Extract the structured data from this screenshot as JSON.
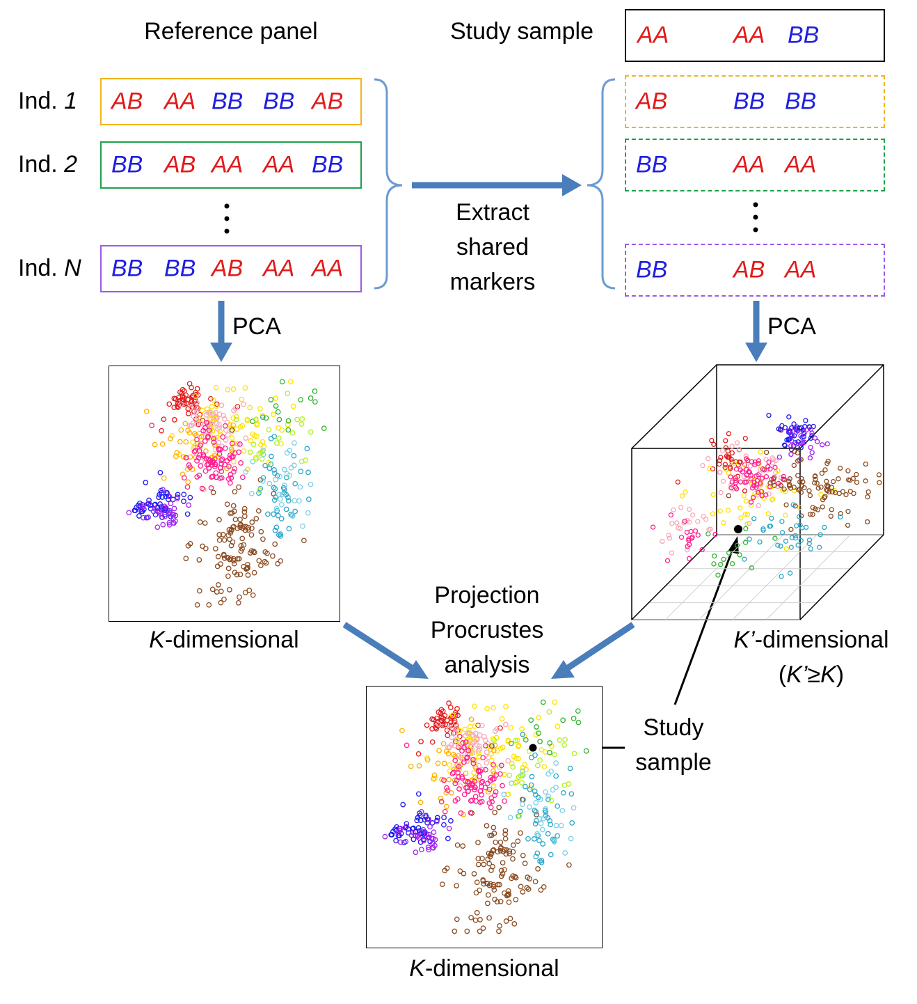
{
  "titles": {
    "reference": "Reference panel",
    "study": "Study sample"
  },
  "study_row": [
    "AA",
    "AA",
    "BB"
  ],
  "ref_rows": [
    {
      "label_prefix": "Ind. ",
      "label_index": "1",
      "color": "#f2b51c",
      "genotypes": [
        "AB",
        "AA",
        "BB",
        "BB",
        "AB"
      ]
    },
    {
      "label_prefix": "Ind. ",
      "label_index": "2",
      "color": "#1da14a",
      "genotypes": [
        "BB",
        "AB",
        "AA",
        "AA",
        "BB"
      ]
    },
    {
      "label_prefix": "Ind. ",
      "label_index": "N",
      "color": "#9a5ae6",
      "genotypes": [
        "BB",
        "BB",
        "AB",
        "AA",
        "AA"
      ]
    }
  ],
  "shared_rows": [
    {
      "color": "#f2b51c",
      "genotypes": [
        "AB",
        "BB",
        "BB"
      ]
    },
    {
      "color": "#1da14a",
      "genotypes": [
        "BB",
        "AA",
        "AA"
      ]
    },
    {
      "color": "#9a5ae6",
      "genotypes": [
        "BB",
        "AB",
        "AA"
      ]
    }
  ],
  "extract_label": [
    "Extract",
    "shared",
    "markers"
  ],
  "pca_left": "PCA",
  "pca_right": "PCA",
  "projection_label": [
    "Projection",
    "Procrustes",
    "analysis"
  ],
  "caption_left": {
    "italic": "K",
    "rest": "-dimensional"
  },
  "caption_right_1": {
    "italic": "K’",
    "rest": "-dimensional"
  },
  "caption_right_2": {
    "open": "(",
    "a": "K’",
    "mid": "≥",
    "b": "K",
    "close": ")"
  },
  "caption_bottom": {
    "italic": "K",
    "rest": "-dimensional"
  },
  "study_sample_label": [
    "Study",
    "sample"
  ],
  "colors": {
    "arrow": "#4a7ebb",
    "bracket": "#6d9bd0",
    "allele_A": "#e01b1b",
    "allele_B": "#1f1fe0",
    "point_palette": [
      "#e31a1c",
      "#f7a8b8",
      "#ffe200",
      "#ffb000",
      "#ff1f8f",
      "#8b4a1f",
      "#1a1aee",
      "#a020f0",
      "#2aa8c8",
      "#7bd0e8",
      "#2fb52f",
      "#b2f023"
    ]
  }
}
